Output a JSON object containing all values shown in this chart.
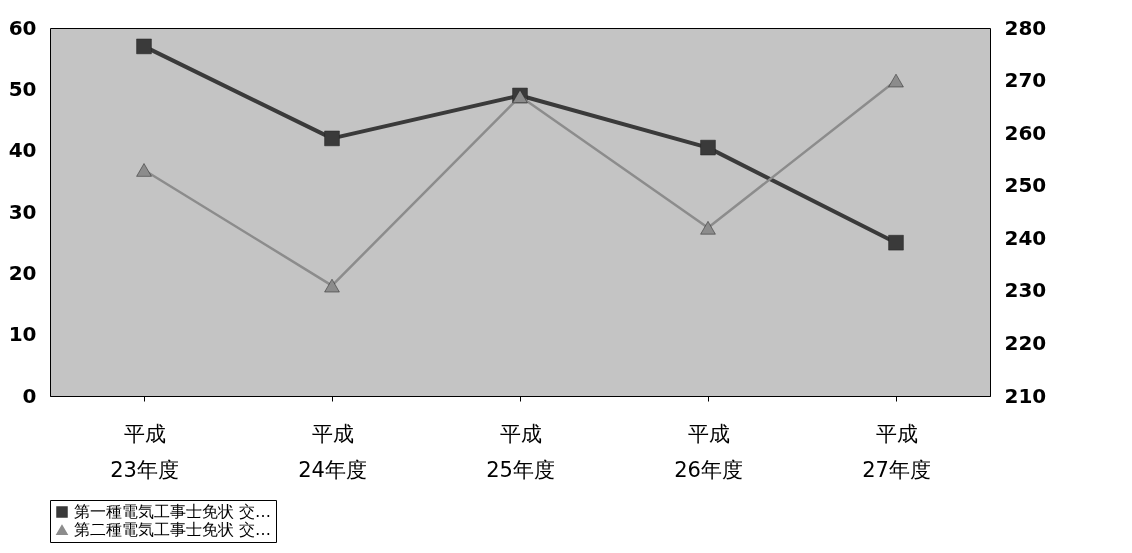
{
  "chart_data": {
    "type": "line",
    "categories": [
      "平成\n23年度",
      "平成\n24年度",
      "平成\n25年度",
      "平成\n26年度",
      "平成\n27年度"
    ],
    "series": [
      {
        "name": "第一種電気工事士免状 交…",
        "color": "#3a3a3a",
        "marker": "square",
        "values": [
          57,
          42,
          49,
          40.5,
          25
        ]
      },
      {
        "name": "第二種電気工事士免状 交…",
        "color": "#8c8c8c",
        "marker": "triangle",
        "axis": "y2",
        "values": [
          253,
          231,
          267,
          242,
          270
        ]
      }
    ],
    "ylim": [
      0,
      60
    ],
    "yticks": [
      0,
      10,
      20,
      30,
      40,
      50,
      60
    ],
    "y2lim": [
      210,
      280
    ],
    "y2ticks": [
      210,
      220,
      230,
      240,
      250,
      260,
      270,
      280
    ],
    "grid": false,
    "legend": "bottom"
  }
}
